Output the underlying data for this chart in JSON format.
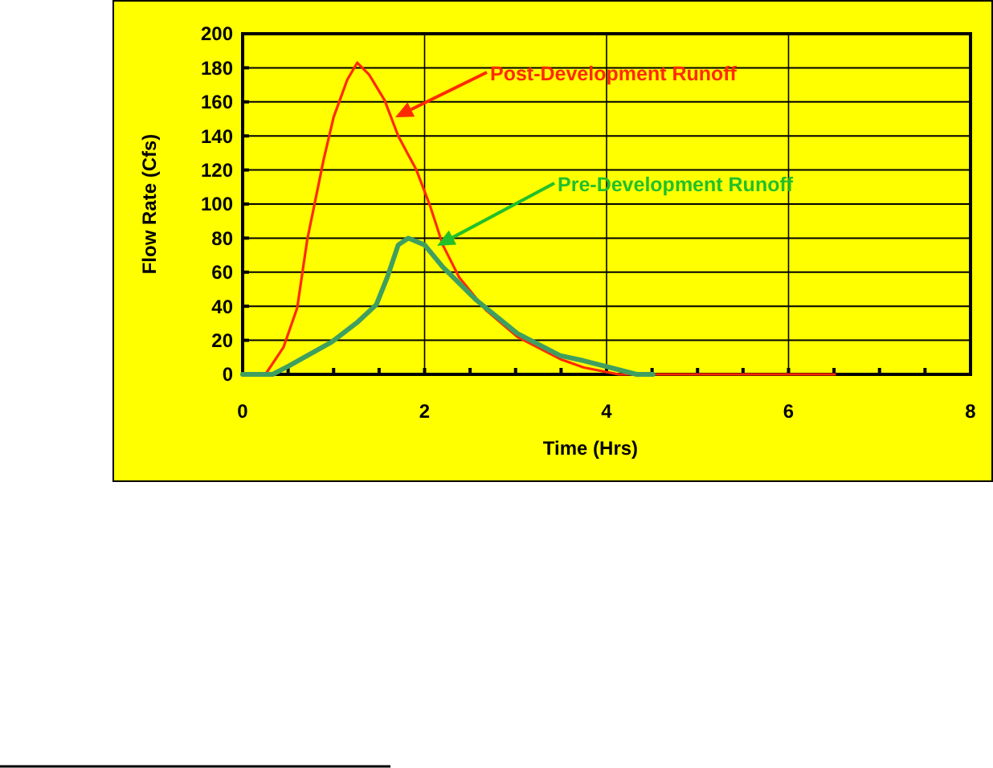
{
  "chart_data": {
    "type": "line",
    "xlabel": "Time (Hrs)",
    "ylabel": "Flow Rate (Cfs)",
    "xlim": [
      0,
      8
    ],
    "xticks": [
      0,
      {
        "value": 0.5,
        "label": null
      },
      {
        "value": 1,
        "label": null
      },
      {
        "value": 1.5,
        "label": null
      },
      2,
      {
        "value": 2.5,
        "label": null
      },
      {
        "value": 3,
        "label": null
      },
      {
        "value": 3.5,
        "label": null
      },
      4,
      {
        "value": 4.5,
        "label": null
      },
      {
        "value": 5,
        "label": null
      },
      {
        "value": 5.5,
        "label": null
      },
      6,
      {
        "value": 6.5,
        "label": null
      },
      {
        "value": 7,
        "label": null
      },
      {
        "value": 7.5,
        "label": null
      },
      8
    ],
    "ylim": [
      0,
      200
    ],
    "yticks": [
      0,
      20,
      40,
      60,
      80,
      100,
      120,
      140,
      160,
      180,
      200
    ],
    "grid": true,
    "legend": false,
    "marker": "none",
    "line_style": "solid",
    "series": [
      {
        "name": "Post-Development Runoff",
        "color": "#ff2a00",
        "x": [
          0,
          0.25,
          0.45,
          0.6,
          0.71,
          0.89,
          1.0,
          1.15,
          1.26,
          1.39,
          1.56,
          1.71,
          1.91,
          2.06,
          2.2,
          2.38,
          2.67,
          3.02,
          3.49,
          3.75,
          4.13,
          6.51
        ],
        "values": [
          0,
          0,
          16,
          39,
          79,
          126,
          151,
          173,
          183,
          176,
          161,
          140,
          120,
          99,
          76,
          57,
          38,
          22,
          9,
          4,
          0,
          0
        ]
      },
      {
        "name": "Pre-Development Runoff",
        "color": "#3f9f5f",
        "x": [
          0,
          0.33,
          0.51,
          0.98,
          1.27,
          1.47,
          1.59,
          1.71,
          1.82,
          2.0,
          2.2,
          2.56,
          3.02,
          3.49,
          3.75,
          4.33,
          4.51
        ],
        "values": [
          0,
          0,
          5,
          19,
          31,
          41,
          57,
          76,
          80,
          76,
          63,
          44,
          24,
          11,
          8,
          0,
          0
        ]
      }
    ]
  }
}
